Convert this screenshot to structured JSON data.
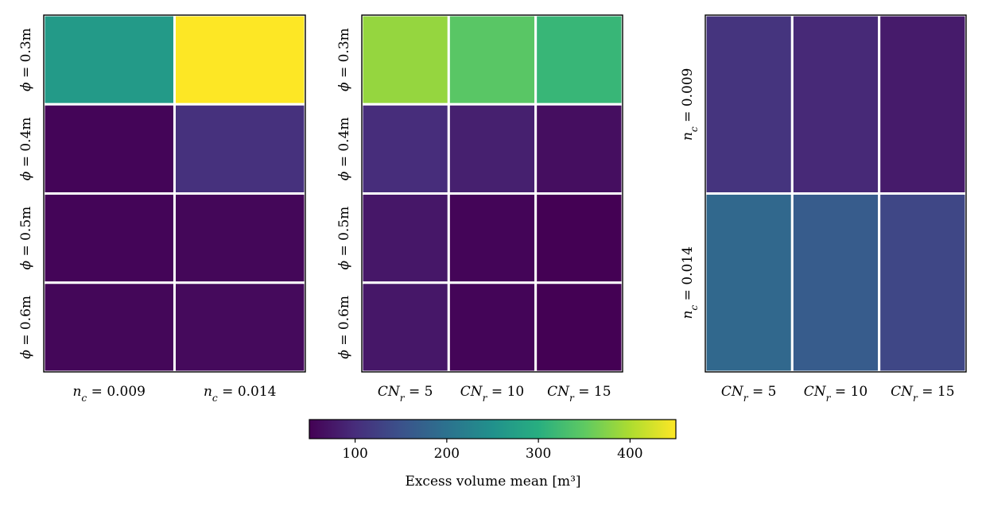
{
  "chart_data": [
    {
      "type": "heatmap",
      "id": "left",
      "rows": [
        "ϕ = 0.3m",
        "ϕ = 0.4m",
        "ϕ = 0.5m",
        "ϕ = 0.6m"
      ],
      "cols": [
        "n_c = 0.009",
        "n_c = 0.014"
      ],
      "values": [
        [
          265,
          450
        ],
        [
          55,
          105
        ],
        [
          55,
          57
        ],
        [
          57,
          60
        ]
      ]
    },
    {
      "type": "heatmap",
      "id": "middle",
      "rows": [
        "ϕ = 0.3m",
        "ϕ = 0.4m",
        "ϕ = 0.5m",
        "ϕ = 0.6m"
      ],
      "cols": [
        "CN_r = 5",
        "CN_r = 10",
        "CN_r = 15"
      ],
      "values": [
        [
          385,
          345,
          315
        ],
        [
          100,
          85,
          65
        ],
        [
          75,
          55,
          50
        ],
        [
          75,
          55,
          50
        ]
      ]
    },
    {
      "type": "heatmap",
      "id": "right",
      "rows": [
        "n_c = 0.009",
        "n_c = 0.014"
      ],
      "cols": [
        "CN_r = 5",
        "CN_r = 10",
        "CN_r = 15"
      ],
      "values": [
        [
          110,
          95,
          80
        ],
        [
          185,
          165,
          135
        ]
      ]
    }
  ],
  "colorbar": {
    "min": 50,
    "max": 450,
    "ticks": [
      100,
      200,
      300,
      400
    ],
    "label": "Excess volume mean [m³]",
    "colors": [
      "#440154",
      "#472d7b",
      "#3b528b",
      "#2c728e",
      "#21918c",
      "#28ae80",
      "#5ec962",
      "#addc30",
      "#fde725"
    ]
  }
}
